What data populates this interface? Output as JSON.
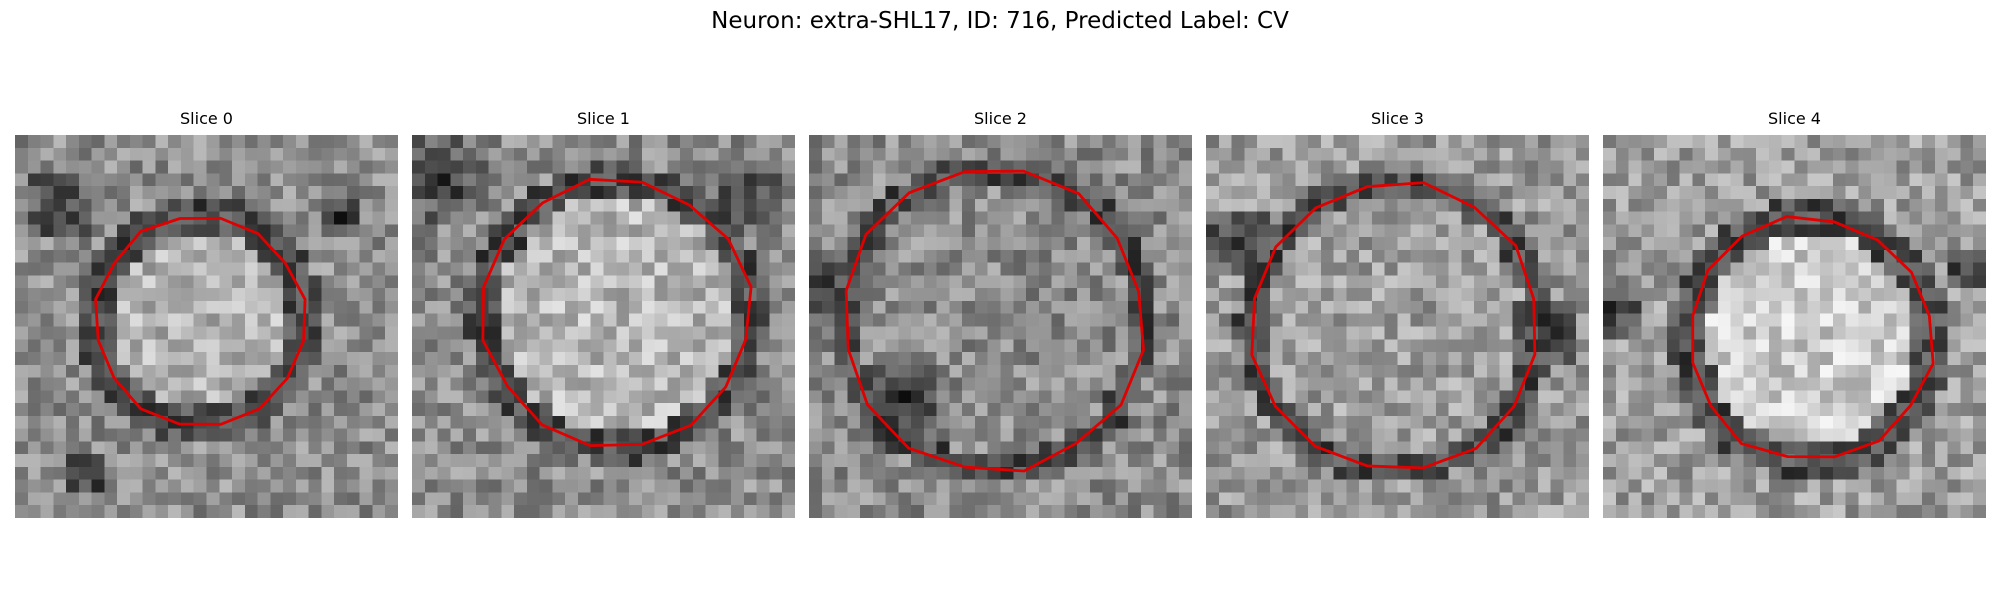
{
  "figure": {
    "title": "Neuron: extra-SHL17, ID: 716, Predicted Label: CV",
    "contour_color": "#e00000"
  },
  "panels": [
    {
      "title": "Slice 0"
    },
    {
      "title": "Slice 1"
    },
    {
      "title": "Slice 2"
    },
    {
      "title": "Slice 3"
    },
    {
      "title": "Slice 4"
    }
  ]
}
